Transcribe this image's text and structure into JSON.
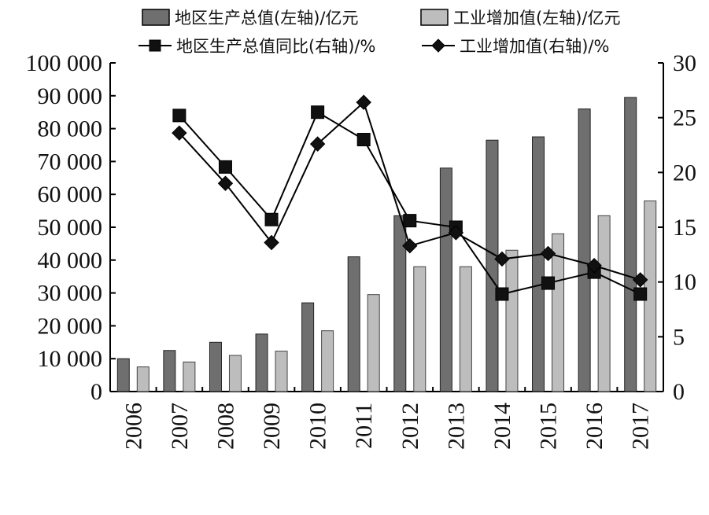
{
  "chart_data": {
    "type": "bar",
    "categories": [
      "2006",
      "2007",
      "2008",
      "2009",
      "2010",
      "2011",
      "2012",
      "2013",
      "2014",
      "2015",
      "2016",
      "2017"
    ],
    "series": [
      {
        "name": "地区生产总值(左轴)/亿元",
        "kind": "bar",
        "axis": "left",
        "color": "#6f6f6f",
        "values": [
          10000,
          12500,
          15000,
          17500,
          27000,
          41000,
          53500,
          68000,
          76500,
          77500,
          86000,
          89500
        ]
      },
      {
        "name": "工业增加值(左轴)/亿元",
        "kind": "bar",
        "axis": "left",
        "color": "#bdbdbd",
        "values": [
          7500,
          9000,
          11000,
          12300,
          18500,
          29500,
          38000,
          38000,
          43000,
          48000,
          53500,
          58000
        ]
      },
      {
        "name": "地区生产总值同比(右轴)/%",
        "kind": "line",
        "marker": "square",
        "axis": "right",
        "color": "#000000",
        "values": [
          null,
          25.2,
          20.5,
          15.7,
          25.5,
          23.0,
          15.6,
          15.0,
          8.9,
          9.9,
          10.9,
          8.9
        ]
      },
      {
        "name": "工业增加值(右轴)/%",
        "kind": "line",
        "marker": "diamond",
        "axis": "right",
        "color": "#000000",
        "values": [
          null,
          23.6,
          19.0,
          13.6,
          22.6,
          26.4,
          13.3,
          14.5,
          12.1,
          12.6,
          11.5,
          10.2
        ]
      }
    ],
    "left_axis": {
      "ylim": [
        0,
        100000
      ],
      "ticks": [
        0,
        10000,
        20000,
        30000,
        40000,
        50000,
        60000,
        70000,
        80000,
        90000,
        100000
      ],
      "tick_labels": [
        "0",
        "10 000",
        "20 000",
        "30 000",
        "40 000",
        "50 000",
        "60 000",
        "70 000",
        "80 000",
        "90 000",
        "100 000"
      ]
    },
    "right_axis": {
      "ylim": [
        0,
        30
      ],
      "ticks": [
        0,
        5,
        10,
        15,
        20,
        25,
        30
      ],
      "tick_labels": [
        "0",
        "5",
        "10",
        "15",
        "20",
        "25",
        "30"
      ]
    },
    "legend_position": "top",
    "grid": false
  }
}
